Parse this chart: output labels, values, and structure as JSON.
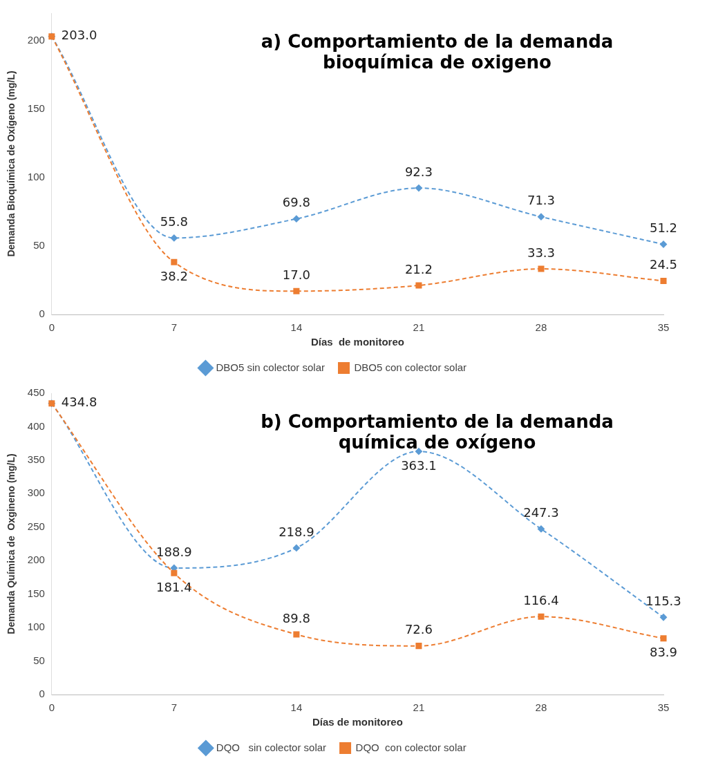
{
  "chart_data": [
    {
      "type": "line",
      "title": "a) Comportamiento de la demanda bioquímica de oxigeno",
      "xlabel": "Días  de monitoreo",
      "ylabel": "Demanda Bioquímica de Oxígeno (mg/L)",
      "categories": [
        "0",
        "7",
        "14",
        "21",
        "28",
        "35"
      ],
      "ylim": [
        0,
        220
      ],
      "yticks": [
        0,
        50,
        100,
        150,
        200
      ],
      "grid": false,
      "legend": "bottom",
      "line_style": "dashed",
      "series": [
        {
          "name": "DBO5 sin colector solar",
          "color": "#5b9bd5",
          "marker": "diamond",
          "values": [
            203.0,
            55.8,
            69.8,
            92.3,
            71.3,
            51.2
          ],
          "value_labels": [
            "203.0",
            "55.8",
            "69.8",
            "92.3",
            "71.3",
            "51.2"
          ]
        },
        {
          "name": "DBO5 con colector solar",
          "color": "#ed7d31",
          "marker": "square",
          "values": [
            203.0,
            38.2,
            17.0,
            21.2,
            33.3,
            24.5
          ],
          "value_labels": [
            null,
            "38.2",
            "17.0",
            "21.2",
            "33.3",
            "24.5"
          ]
        }
      ]
    },
    {
      "type": "line",
      "title": "b) Comportamiento de la demanda química de oxígeno",
      "xlabel": "Días de monitoreo",
      "ylabel": "Demanda Química de  Oxgineno (mg/L)",
      "categories": [
        "0",
        "7",
        "14",
        "21",
        "28",
        "35"
      ],
      "ylim": [
        0,
        450
      ],
      "yticks": [
        0,
        50,
        100,
        150,
        200,
        250,
        300,
        350,
        400,
        450
      ],
      "grid": false,
      "legend": "bottom",
      "line_style": "dashed",
      "series": [
        {
          "name": "DQO   sin colector solar",
          "color": "#5b9bd5",
          "marker": "diamond",
          "values": [
            434.8,
            188.9,
            218.9,
            363.1,
            247.3,
            115.3
          ],
          "value_labels": [
            "434.8",
            "188.9",
            "218.9",
            "363.1",
            "247.3",
            "115.3"
          ]
        },
        {
          "name": "DQO  con colector solar",
          "color": "#ed7d31",
          "marker": "square",
          "values": [
            434.8,
            181.4,
            89.8,
            72.6,
            116.4,
            83.9
          ],
          "value_labels": [
            null,
            "181.4",
            "89.8",
            "72.6",
            "116.4",
            "83.9"
          ]
        }
      ]
    }
  ]
}
